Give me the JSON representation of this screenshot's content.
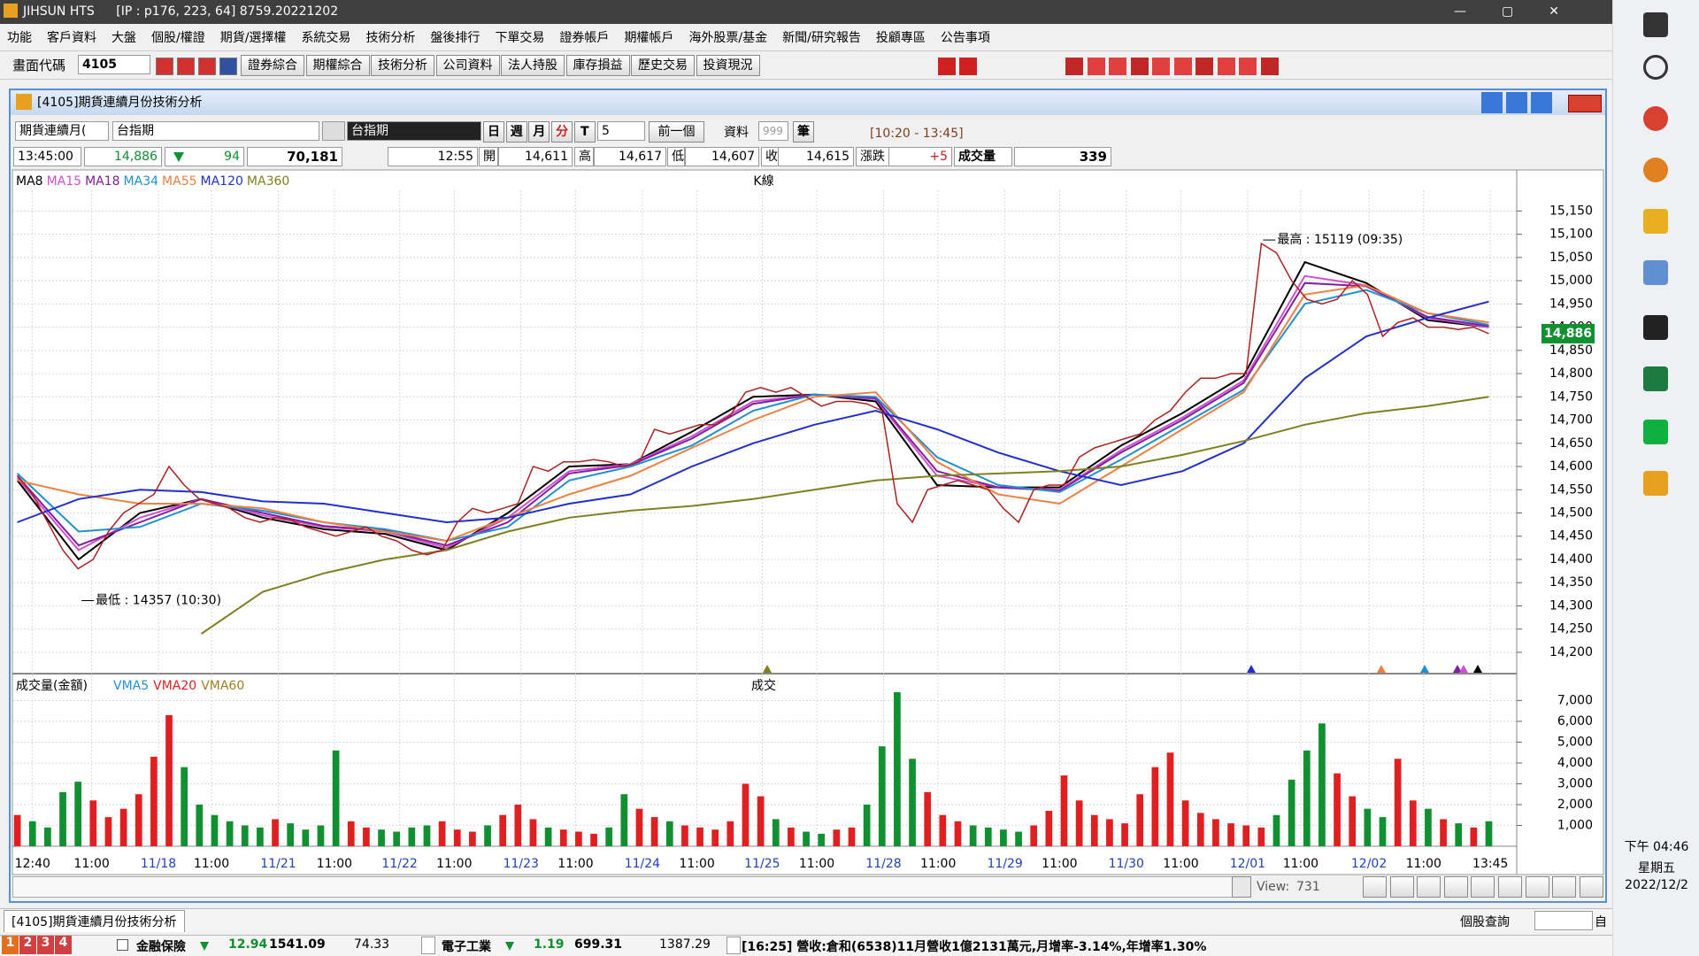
{
  "window": {
    "app": "JIHSUN HTS",
    "info": "[IP : p176, 223, 64] 8759.20221202"
  },
  "menu": [
    "功能",
    "客戶資料",
    "大盤",
    "個股/權證",
    "期貨/選擇權",
    "系統交易",
    "技術分析",
    "盤後排行",
    "下單交易",
    "證券帳戶",
    "期權帳戶",
    "海外股票/基金",
    "新聞/研究報告",
    "投顧專區",
    "公告事項"
  ],
  "toolbar": {
    "code_label": "畫面代碼",
    "code": "4105",
    "buttons": [
      "證券綜合",
      "期權綜合",
      "技術分析",
      "公司資料",
      "法人持股",
      "庫存損益",
      "歷史交易",
      "投資現況"
    ]
  },
  "panel": {
    "title": "[4105]期貨連續月份技術分析",
    "controls": {
      "series": "期貨連續月(",
      "product": "台指期",
      "product_name": "台指期",
      "periods": [
        "日",
        "週",
        "月",
        "分",
        "T"
      ],
      "interval": "5",
      "prev": "前一個",
      "data_label": "資料",
      "data_count": "999",
      "unit": "筆",
      "range": "[10:20 - 13:45]"
    },
    "quote": {
      "time": "13:45:00",
      "last": "14,886",
      "change": "94",
      "volume_total": "70,181",
      "bar_time": "12:55",
      "open_label": "開",
      "open": "14,611",
      "high_label": "高",
      "high": "14,617",
      "low_label": "低",
      "low": "14,607",
      "close_label": "收",
      "close": "14,615",
      "diff_label": "漲跌",
      "diff": "+5",
      "vol_label": "成交量",
      "vol": "339"
    }
  },
  "chart_data": {
    "type": "line",
    "pane_label": "K線",
    "volume_label": "成交",
    "color": "#b02020",
    "values": [
      14580,
      14540,
      14480,
      14420,
      14380,
      14400,
      14460,
      14500,
      14520,
      14540,
      14600,
      14560,
      14530,
      14520,
      14510,
      14490,
      14480,
      14490,
      14485,
      14470,
      14460,
      14450,
      14460,
      14470,
      14450,
      14440,
      14420,
      14410,
      14420,
      14480,
      14510,
      14500,
      14510,
      14520,
      14600,
      14590,
      14610,
      14610,
      14615,
      14610,
      14600,
      14610,
      14680,
      14670,
      14680,
      14690,
      14690,
      14710,
      14760,
      14770,
      14760,
      14770,
      14750,
      14730,
      14740,
      14740,
      14735,
      14720,
      14520,
      14480,
      14550,
      14560,
      14570,
      14560,
      14550,
      14510,
      14480,
      14550,
      14560,
      14560,
      14620,
      14640,
      14650,
      14660,
      14670,
      14700,
      14720,
      14760,
      14790,
      14790,
      14800,
      14800,
      15080,
      15060,
      15000,
      14960,
      14950,
      14960,
      15000,
      14970,
      14880,
      14910,
      14920,
      14900,
      14900,
      14895,
      14900,
      14886
    ],
    "series": [
      {
        "name": "MA8",
        "color": "#000000",
        "values": [
          14570,
          14400,
          14500,
          14530,
          14490,
          14465,
          14455,
          14420,
          14500,
          14600,
          14605,
          14675,
          14750,
          14755,
          14740,
          14560,
          14555,
          14555,
          14645,
          14715,
          14795,
          15040,
          14995,
          14915,
          14900
        ]
      },
      {
        "name": "MA15",
        "color": "#d050d0",
        "values": [
          14575,
          14420,
          14490,
          14530,
          14495,
          14470,
          14460,
          14425,
          14490,
          14590,
          14605,
          14665,
          14740,
          14755,
          14745,
          14580,
          14555,
          14550,
          14635,
          14705,
          14785,
          15010,
          14990,
          14920,
          14900
        ]
      },
      {
        "name": "MA18",
        "color": "#8020a0",
        "values": [
          14580,
          14430,
          14480,
          14530,
          14500,
          14472,
          14462,
          14430,
          14480,
          14585,
          14603,
          14660,
          14735,
          14755,
          14747,
          14590,
          14555,
          14548,
          14630,
          14700,
          14780,
          14995,
          14988,
          14922,
          14902
        ]
      },
      {
        "name": "MA34",
        "color": "#2090d0",
        "values": [
          14585,
          14460,
          14470,
          14520,
          14505,
          14480,
          14465,
          14440,
          14470,
          14570,
          14600,
          14645,
          14720,
          14755,
          14750,
          14620,
          14560,
          14545,
          14615,
          14690,
          14765,
          14950,
          14980,
          14930,
          14905
        ]
      },
      {
        "name": "MA55",
        "color": "#f08040",
        "values": [
          14570,
          14540,
          14520,
          14520,
          14510,
          14480,
          14460,
          14440,
          14490,
          14540,
          14580,
          14640,
          14700,
          14750,
          14760,
          14610,
          14540,
          14520,
          14600,
          14680,
          14760,
          14970,
          14990,
          14930,
          14910
        ]
      },
      {
        "name": "MA120",
        "color": "#2030d0",
        "values": [
          14480,
          14530,
          14550,
          14545,
          14525,
          14520,
          14500,
          14480,
          14490,
          14520,
          14540,
          14600,
          14650,
          14690,
          14720,
          14680,
          14630,
          14590,
          14560,
          14590,
          14650,
          14790,
          14880,
          14920,
          14955
        ]
      },
      {
        "name": "MA360",
        "color": "#808020",
        "values": [
          null,
          null,
          null,
          14240,
          14330,
          14370,
          14400,
          14420,
          14460,
          14490,
          14505,
          14515,
          14530,
          14550,
          14570,
          14580,
          14585,
          14590,
          14600,
          14625,
          14655,
          14690,
          14715,
          14730,
          14750
        ]
      }
    ],
    "high_note": "最高 : 15119 (09:35)",
    "low_note": "最低 : 14357 (10:30)",
    "last_tag": {
      "value": 14886,
      "label": "14,886"
    },
    "ylim": [
      14158,
      15185
    ],
    "yticks": [
      {
        "value": 14200,
        "label": "14,200"
      },
      {
        "value": 14250,
        "label": "14,250"
      },
      {
        "value": 14300,
        "label": "14,300"
      },
      {
        "value": 14350,
        "label": "14,350"
      },
      {
        "value": 14400,
        "label": "14,400"
      },
      {
        "value": 14450,
        "label": "14,450"
      },
      {
        "value": 14500,
        "label": "14,500"
      },
      {
        "value": 14550,
        "label": "14,550"
      },
      {
        "value": 14600,
        "label": "14,600"
      },
      {
        "value": 14650,
        "label": "14,650"
      },
      {
        "value": 14700,
        "label": "14,700"
      },
      {
        "value": 14750,
        "label": "14,750"
      },
      {
        "value": 14800,
        "label": "14,800"
      },
      {
        "value": 14850,
        "label": "14,850"
      },
      {
        "value": 14900,
        "label": "14,900"
      },
      {
        "value": 14950,
        "label": "14,950"
      },
      {
        "value": 15000,
        "label": "15,000"
      },
      {
        "value": 15050,
        "label": "15,050"
      },
      {
        "value": 15100,
        "label": "15,100"
      },
      {
        "value": 15150,
        "label": "15,150"
      }
    ],
    "xlim": [
      0,
      97
    ],
    "xticks": [
      {
        "value": 1,
        "label": "12:40"
      },
      {
        "value": 4.9,
        "label": "11:00"
      },
      {
        "value": 9.3,
        "label": "11/18"
      },
      {
        "value": 12.8,
        "label": "11:00"
      },
      {
        "value": 17.2,
        "label": "11/21"
      },
      {
        "value": 20.9,
        "label": "11:00"
      },
      {
        "value": 25.2,
        "label": "11/22"
      },
      {
        "value": 28.8,
        "label": "11:00"
      },
      {
        "value": 33.2,
        "label": "11/23"
      },
      {
        "value": 36.8,
        "label": "11:00"
      },
      {
        "value": 41.2,
        "label": "11/24"
      },
      {
        "value": 44.8,
        "label": "11:00"
      },
      {
        "value": 49.1,
        "label": "11/25"
      },
      {
        "value": 52.7,
        "label": "11:00"
      },
      {
        "value": 57.1,
        "label": "11/28"
      },
      {
        "value": 60.7,
        "label": "11:00"
      },
      {
        "value": 65.1,
        "label": "11/29"
      },
      {
        "value": 68.7,
        "label": "11:00"
      },
      {
        "value": 73.1,
        "label": "11/30"
      },
      {
        "value": 76.7,
        "label": "11:00"
      },
      {
        "value": 81.1,
        "label": "12/01"
      },
      {
        "value": 84.6,
        "label": "11:00"
      },
      {
        "value": 89.1,
        "label": "12/02"
      },
      {
        "value": 92.7,
        "label": "11:00"
      },
      {
        "value": 97.1,
        "label": "13:45"
      }
    ],
    "volume": {
      "title": "成交量(金額)",
      "legend": [
        {
          "name": "VMA5",
          "color": "#2090e0"
        },
        {
          "name": "VMA20",
          "color": "#e02020"
        },
        {
          "name": "VMA60",
          "color": "#a08020"
        }
      ],
      "up_color": "#e02020",
      "down_color": "#109030",
      "values": [
        1500,
        1200,
        900,
        2600,
        3100,
        2200,
        1400,
        1800,
        2500,
        4300,
        6300,
        3800,
        2000,
        1500,
        1200,
        1000,
        900,
        1300,
        1100,
        800,
        1000,
        4600,
        1200,
        900,
        800,
        700,
        900,
        1000,
        1200,
        800,
        700,
        1000,
        1500,
        2000,
        1300,
        900,
        800,
        700,
        600,
        900,
        2500,
        1800,
        1400,
        1200,
        1000,
        900,
        800,
        1200,
        3000,
        2400,
        1300,
        900,
        700,
        600,
        800,
        900,
        2000,
        4800,
        7400,
        4200,
        2600,
        1500,
        1200,
        1000,
        900,
        800,
        700,
        1000,
        1700,
        3400,
        2200,
        1500,
        1300,
        1100,
        2500,
        3800,
        4500,
        2200,
        1600,
        1300,
        1100,
        1000,
        900,
        1500,
        3200,
        4600,
        5900,
        3500,
        2400,
        1800,
        1400,
        4200,
        2200,
        1800,
        1300,
        1100,
        900,
        1200
      ],
      "ylim": [
        0,
        8250
      ],
      "yticks": [
        {
          "value": 1000,
          "label": "1,000"
        },
        {
          "value": 2000,
          "label": "2,000"
        },
        {
          "value": 3000,
          "label": "3,000"
        },
        {
          "value": 4000,
          "label": "4,000"
        },
        {
          "value": 5000,
          "label": "5,000"
        },
        {
          "value": 6000,
          "label": "6,000"
        },
        {
          "value": 7000,
          "label": "7,000"
        }
      ]
    },
    "grid": true
  },
  "scroll": {
    "view_label": "View:",
    "view": "731"
  },
  "tabs": {
    "active": "[4105]期貨連續月份技術分析",
    "search": "個股查詢",
    "auto": "自"
  },
  "status": {
    "pages": [
      "1",
      "2",
      "3",
      "4"
    ],
    "groups": [
      {
        "name": "金融保險",
        "change": "12.94",
        "index": "1541.09",
        "amount": "74.33"
      },
      {
        "name": "電子工業",
        "change": "1.19",
        "index": "699.31",
        "amount": "1387.29"
      }
    ],
    "news": "[16:25] 營收:倉和(6538)11月營收1億2131萬元,月增率-3.14%,年增率1.30%"
  },
  "clock": {
    "time": "下午 04:46",
    "day": "星期五",
    "date": "2022/12/2"
  }
}
